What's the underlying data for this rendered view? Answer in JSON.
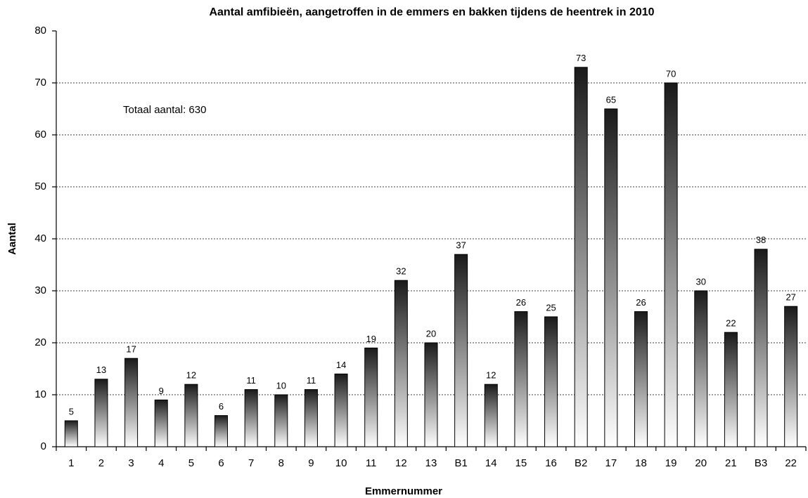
{
  "chart_data": {
    "type": "bar",
    "title": "Aantal amfibieën, aangetroffen in de emmers en bakken tijdens de heentrek in 2010",
    "x_label": "Emmernummer",
    "y_label": "Aantal",
    "annotation": "Totaal aantal:  630",
    "categories": [
      "1",
      "2",
      "3",
      "4",
      "5",
      "6",
      "7",
      "8",
      "9",
      "10",
      "11",
      "12",
      "13",
      "B1",
      "14",
      "15",
      "16",
      "B2",
      "17",
      "18",
      "19",
      "20",
      "21",
      "B3",
      "22"
    ],
    "values": [
      5,
      13,
      17,
      9,
      12,
      6,
      11,
      10,
      11,
      14,
      19,
      32,
      20,
      37,
      12,
      26,
      25,
      73,
      65,
      26,
      70,
      30,
      22,
      38,
      27
    ],
    "color": "#1a1a1a",
    "ylim": [
      0,
      80
    ],
    "yticks": [
      0,
      10,
      20,
      30,
      40,
      50,
      60,
      70,
      80
    ],
    "grid": true
  }
}
